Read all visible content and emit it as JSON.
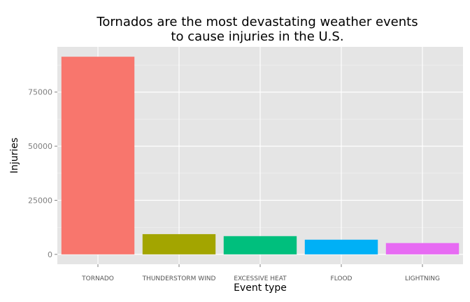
{
  "chart_data": {
    "type": "bar",
    "title_lines": [
      "Tornados are the most devastating weather events",
      "to cause injuries in the U.S."
    ],
    "xlabel": "Event type",
    "ylabel": "Injuries",
    "categories": [
      "TORNADO",
      "THUNDERSTORM WIND",
      "EXCESSIVE HEAT",
      "FLOOD",
      "LIGHTNING"
    ],
    "values": [
      91346,
      9353,
      8428,
      6789,
      5230
    ],
    "colors": [
      "#F8766D",
      "#A3A500",
      "#00BF7D",
      "#00B0F6",
      "#E76BF3"
    ],
    "ylim": [
      -4567,
      95913
    ],
    "yticks": [
      0,
      25000,
      50000,
      75000
    ],
    "ytick_labels": [
      "0",
      "25000",
      "50000",
      "75000"
    ],
    "grid": true,
    "legend": "none",
    "panel_background": "#E5E5E5",
    "gridline_color": "#FFFFFF"
  }
}
